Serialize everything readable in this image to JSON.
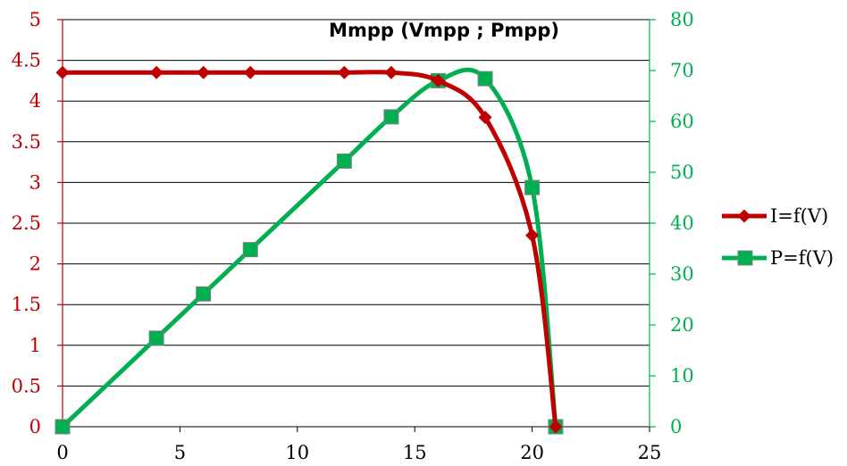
{
  "chart_data": {
    "type": "line",
    "annotation": "Mmpp (Vmpp ; Pmpp)",
    "xlim": [
      0,
      25
    ],
    "x_ticks": [
      "0",
      "5",
      "10",
      "15",
      "20",
      "25"
    ],
    "y_left": {
      "range": [
        0,
        5
      ],
      "ticks": [
        "0",
        "0.5",
        "1",
        "1.5",
        "2",
        "2.5",
        "3",
        "3.5",
        "4",
        "4.5",
        "5"
      ]
    },
    "y_right": {
      "range": [
        0,
        80
      ],
      "ticks": [
        "0",
        "10",
        "20",
        "30",
        "40",
        "50",
        "60",
        "70",
        "80"
      ]
    },
    "grid": true,
    "legend_position": "right",
    "series": [
      {
        "name": "I=f(V)",
        "axis": "left",
        "color": "#c00000",
        "marker": "diamond",
        "x": [
          0,
          4,
          6,
          8,
          12,
          14,
          16,
          18,
          20,
          21
        ],
        "y": [
          4.35,
          4.35,
          4.35,
          4.35,
          4.35,
          4.35,
          4.25,
          3.8,
          2.35,
          0
        ]
      },
      {
        "name": "P=f(V)",
        "axis": "right",
        "color": "#00b050",
        "marker": "square",
        "x": [
          0,
          4,
          6,
          8,
          12,
          14,
          16,
          18,
          20,
          21
        ],
        "y": [
          0,
          17.4,
          26.1,
          34.8,
          52.2,
          60.9,
          68,
          68.4,
          47,
          0
        ]
      }
    ]
  }
}
